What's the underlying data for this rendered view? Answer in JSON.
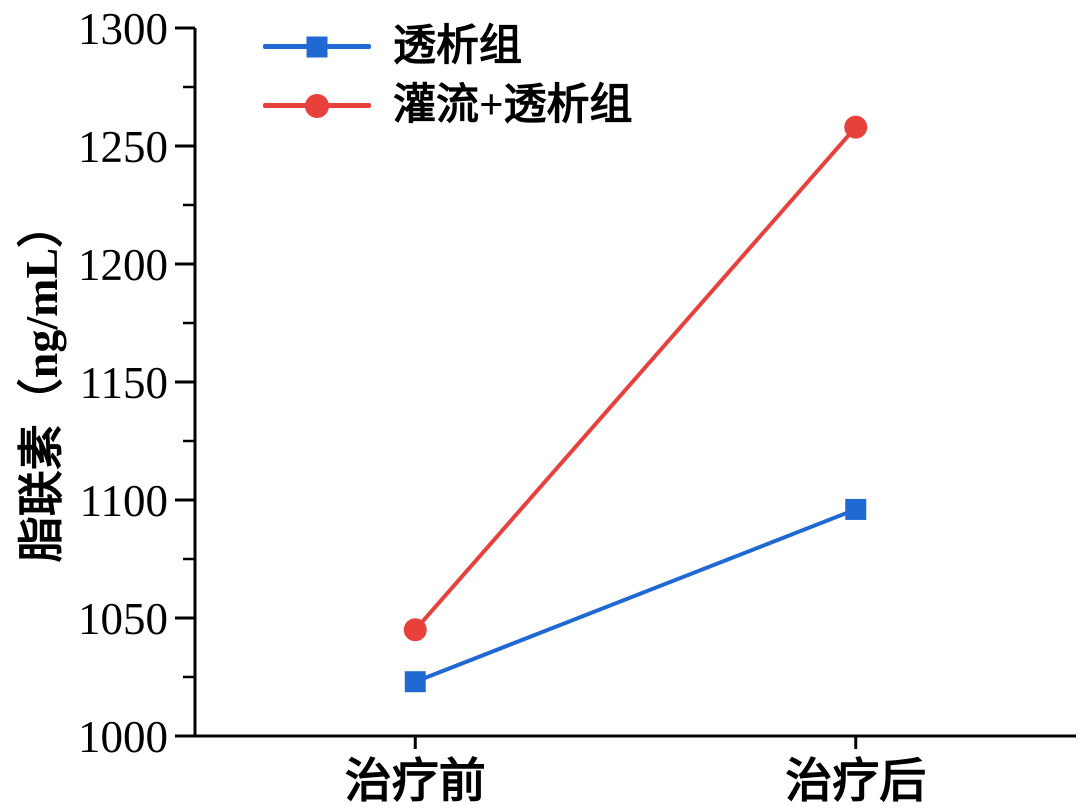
{
  "chart_data": {
    "type": "line",
    "title": "",
    "categories": [
      "治疗前",
      "治疗后"
    ],
    "series": [
      {
        "name": "透析组",
        "color": "#2069d2",
        "marker": "square",
        "values": [
          1023,
          1096
        ]
      },
      {
        "name": "灌流+透析组",
        "color": "#e8413c",
        "marker": "circle",
        "values": [
          1045,
          1258
        ]
      }
    ],
    "xlabel": "",
    "ylabel": "脂联素（ng/mL）",
    "ylim": [
      1000,
      1300
    ],
    "y_ticks": [
      1000,
      1050,
      1100,
      1150,
      1200,
      1250,
      1300
    ],
    "y_minor_ticks": [
      1025,
      1075,
      1125,
      1175,
      1225,
      1275
    ],
    "grid": false,
    "legend_position": "top-left",
    "axis_color": "#000000",
    "background": "#ffffff"
  }
}
